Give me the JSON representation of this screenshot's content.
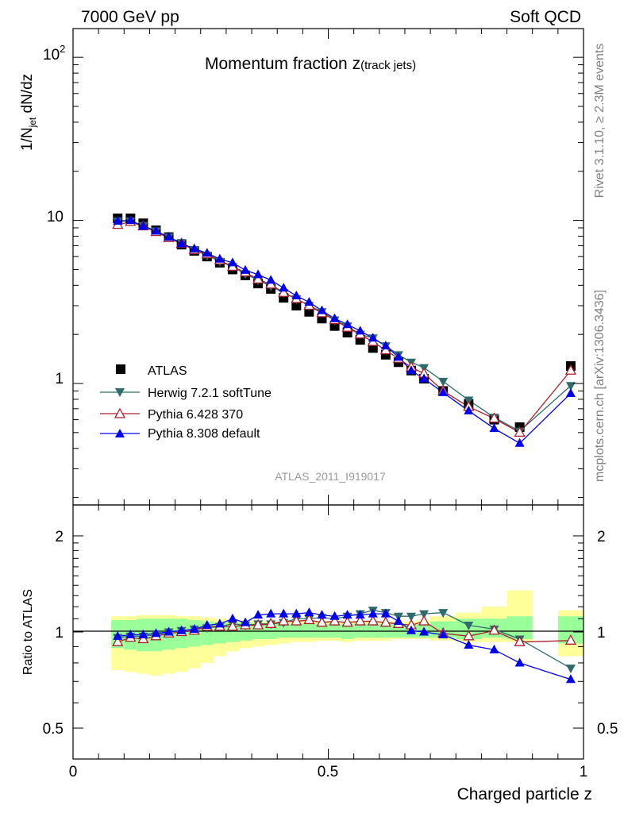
{
  "header": {
    "left": "7000 GeV pp",
    "right": "Soft QCD"
  },
  "side_labels": {
    "rivet": "Rivet 3.1.10, ≥ 2.3M events",
    "mcplots": "mcplots.cern.ch [arXiv:1306.3436]"
  },
  "chart_data": [
    {
      "type": "line",
      "panel": "main",
      "title_main": "Momentum fraction z",
      "title_sub": "(track jets)",
      "ylabel_main": "1/N",
      "ylabel_sub": "jet",
      "ylabel_rest": " dN/dz",
      "xlabel": "Charged particle z",
      "yscale": "log",
      "ylim": [
        0.18,
        150
      ],
      "xlim": [
        0,
        1
      ],
      "ytick_labels": {
        "t10": "10",
        "t1": "1",
        "t100_base": "10",
        "t100_exp": "2"
      },
      "watermark": "ATLAS_2011_I919017",
      "legend": [
        "ATLAS",
        "Herwig 7.2.1 softTune",
        "Pythia 6.428 370",
        "Pythia 8.308 default"
      ],
      "x": [
        0.0875,
        0.1125,
        0.1375,
        0.1625,
        0.1875,
        0.2125,
        0.2375,
        0.2625,
        0.2875,
        0.3125,
        0.3375,
        0.3625,
        0.3875,
        0.4125,
        0.4375,
        0.4625,
        0.4875,
        0.5125,
        0.5375,
        0.5625,
        0.5875,
        0.6125,
        0.6375,
        0.6625,
        0.6875,
        0.725,
        0.775,
        0.825,
        0.875,
        0.975
      ],
      "series": [
        {
          "name": "ATLAS",
          "color": "#000000",
          "marker": "square",
          "values": [
            10.3,
            10.3,
            9.6,
            8.7,
            7.9,
            7.1,
            6.5,
            6.0,
            5.5,
            5.0,
            4.6,
            4.1,
            3.8,
            3.35,
            3.0,
            2.75,
            2.5,
            2.25,
            2.05,
            1.85,
            1.65,
            1.5,
            1.35,
            1.2,
            1.07,
            0.9,
            0.75,
            0.6,
            0.54,
            1.28
          ]
        },
        {
          "name": "Herwig 7.2.1 softTune",
          "color": "#2e6b6b",
          "marker": "triangle-down",
          "values": [
            9.9,
            9.9,
            9.3,
            8.6,
            7.9,
            7.3,
            6.6,
            6.1,
            5.6,
            5.2,
            4.7,
            4.3,
            3.95,
            3.6,
            3.3,
            3.0,
            2.75,
            2.45,
            2.25,
            2.0,
            1.9,
            1.7,
            1.5,
            1.35,
            1.25,
            1.03,
            0.79,
            0.62,
            0.51,
            0.97
          ]
        },
        {
          "name": "Pythia 6.428 370",
          "color": "#aa1f2e",
          "marker": "triangle-up-open",
          "values": [
            9.4,
            9.8,
            9.2,
            8.5,
            7.8,
            7.2,
            6.6,
            6.2,
            5.7,
            5.2,
            4.8,
            4.35,
            4.05,
            3.6,
            3.3,
            3.0,
            2.7,
            2.45,
            2.2,
            2.0,
            1.8,
            1.6,
            1.42,
            1.26,
            1.15,
            0.9,
            0.72,
            0.61,
            0.5,
            1.2
          ]
        },
        {
          "name": "Pythia 8.308 default",
          "color": "#0000ee",
          "marker": "triangle-up",
          "values": [
            9.9,
            10.0,
            9.2,
            8.6,
            7.9,
            7.2,
            6.7,
            6.3,
            5.8,
            5.5,
            4.95,
            4.65,
            4.3,
            3.85,
            3.45,
            3.15,
            2.8,
            2.5,
            2.3,
            2.1,
            1.9,
            1.7,
            1.45,
            1.2,
            1.07,
            0.88,
            0.68,
            0.53,
            0.43,
            0.87
          ]
        }
      ]
    },
    {
      "type": "line",
      "panel": "ratio",
      "ylabel": "Ratio to ATLAS",
      "xlabel": "Charged particle z",
      "yscale": "log",
      "ylim": [
        0.4,
        2.5
      ],
      "xlim": [
        0,
        1
      ],
      "ytick_labels": [
        "0.5",
        "1",
        "2"
      ],
      "xtick_labels": [
        "0",
        "0.5",
        "1"
      ],
      "x": [
        0.0875,
        0.1125,
        0.1375,
        0.1625,
        0.1875,
        0.2125,
        0.2375,
        0.2625,
        0.2875,
        0.3125,
        0.3375,
        0.3625,
        0.3875,
        0.4125,
        0.4375,
        0.4625,
        0.4875,
        0.5125,
        0.5375,
        0.5625,
        0.5875,
        0.6125,
        0.6375,
        0.6625,
        0.6875,
        0.725,
        0.775,
        0.825,
        0.875,
        0.975
      ],
      "bins": [
        [
          0.075,
          0.1
        ],
        [
          0.1,
          0.125
        ],
        [
          0.125,
          0.15
        ],
        [
          0.15,
          0.175
        ],
        [
          0.175,
          0.2
        ],
        [
          0.2,
          0.225
        ],
        [
          0.225,
          0.25
        ],
        [
          0.25,
          0.275
        ],
        [
          0.275,
          0.3
        ],
        [
          0.3,
          0.325
        ],
        [
          0.325,
          0.35
        ],
        [
          0.35,
          0.375
        ],
        [
          0.375,
          0.4
        ],
        [
          0.4,
          0.425
        ],
        [
          0.425,
          0.45
        ],
        [
          0.45,
          0.475
        ],
        [
          0.475,
          0.5
        ],
        [
          0.5,
          0.525
        ],
        [
          0.525,
          0.55
        ],
        [
          0.55,
          0.575
        ],
        [
          0.575,
          0.6
        ],
        [
          0.6,
          0.625
        ],
        [
          0.625,
          0.65
        ],
        [
          0.65,
          0.675
        ],
        [
          0.675,
          0.7
        ],
        [
          0.7,
          0.75
        ],
        [
          0.75,
          0.8
        ],
        [
          0.8,
          0.85
        ],
        [
          0.85,
          0.9
        ],
        [
          0.95,
          1.0
        ]
      ],
      "band_inner": [
        [
          0.89,
          1.09
        ],
        [
          0.88,
          1.09
        ],
        [
          0.87,
          1.1
        ],
        [
          0.87,
          1.1
        ],
        [
          0.88,
          1.1
        ],
        [
          0.89,
          1.1
        ],
        [
          0.9,
          1.09
        ],
        [
          0.91,
          1.08
        ],
        [
          0.92,
          1.07
        ],
        [
          0.93,
          1.07
        ],
        [
          0.94,
          1.07
        ],
        [
          0.95,
          1.06
        ],
        [
          0.95,
          1.06
        ],
        [
          0.96,
          1.06
        ],
        [
          0.96,
          1.06
        ],
        [
          0.96,
          1.06
        ],
        [
          0.96,
          1.06
        ],
        [
          0.96,
          1.06
        ],
        [
          0.95,
          1.06
        ],
        [
          0.96,
          1.06
        ],
        [
          0.96,
          1.06
        ],
        [
          0.96,
          1.06
        ],
        [
          0.96,
          1.06
        ],
        [
          0.96,
          1.06
        ],
        [
          0.96,
          1.06
        ],
        [
          0.96,
          1.08
        ],
        [
          0.95,
          1.1
        ],
        [
          0.96,
          1.1
        ],
        [
          0.95,
          1.12
        ],
        [
          0.92,
          1.12
        ]
      ],
      "band_outer": [
        [
          0.76,
          1.12
        ],
        [
          0.75,
          1.12
        ],
        [
          0.74,
          1.13
        ],
        [
          0.73,
          1.13
        ],
        [
          0.74,
          1.13
        ],
        [
          0.75,
          1.12
        ],
        [
          0.77,
          1.12
        ],
        [
          0.8,
          1.11
        ],
        [
          0.84,
          1.1
        ],
        [
          0.87,
          1.09
        ],
        [
          0.89,
          1.09
        ],
        [
          0.9,
          1.08
        ],
        [
          0.91,
          1.08
        ],
        [
          0.92,
          1.08
        ],
        [
          0.93,
          1.08
        ],
        [
          0.93,
          1.08
        ],
        [
          0.94,
          1.08
        ],
        [
          0.94,
          1.08
        ],
        [
          0.93,
          1.08
        ],
        [
          0.94,
          1.08
        ],
        [
          0.94,
          1.08
        ],
        [
          0.94,
          1.08
        ],
        [
          0.95,
          1.08
        ],
        [
          0.95,
          1.08
        ],
        [
          0.95,
          1.09
        ],
        [
          0.94,
          1.12
        ],
        [
          0.93,
          1.15
        ],
        [
          0.93,
          1.2
        ],
        [
          0.93,
          1.35
        ],
        [
          0.84,
          1.17
        ]
      ],
      "series": [
        {
          "name": "Herwig 7.2.1 softTune",
          "color": "#2e6b6b",
          "marker": "triangle-down",
          "values": [
            0.96,
            0.97,
            0.97,
            0.98,
            1.0,
            1.01,
            1.02,
            1.03,
            1.04,
            1.06,
            1.05,
            1.06,
            1.06,
            1.07,
            1.1,
            1.1,
            1.11,
            1.1,
            1.12,
            1.14,
            1.17,
            1.15,
            1.12,
            1.12,
            1.14,
            1.15,
            1.05,
            1.02,
            0.95,
            0.77
          ]
        },
        {
          "name": "Pythia 6.428 370",
          "color": "#aa1f2e",
          "marker": "triangle-up-open",
          "values": [
            0.93,
            0.96,
            0.95,
            0.97,
            0.99,
            1.0,
            1.01,
            1.04,
            1.04,
            1.04,
            1.05,
            1.05,
            1.06,
            1.08,
            1.08,
            1.09,
            1.07,
            1.08,
            1.07,
            1.08,
            1.08,
            1.07,
            1.06,
            1.05,
            1.08,
            0.99,
            0.97,
            1.01,
            0.93,
            0.94
          ]
        },
        {
          "name": "Pythia 8.308 default",
          "color": "#0000ee",
          "marker": "triangle-up",
          "values": [
            0.97,
            0.98,
            0.98,
            0.99,
            1.0,
            1.01,
            1.02,
            1.05,
            1.06,
            1.1,
            1.07,
            1.13,
            1.14,
            1.14,
            1.14,
            1.15,
            1.13,
            1.12,
            1.13,
            1.13,
            1.14,
            1.14,
            1.08,
            1.01,
            1.0,
            0.98,
            0.91,
            0.88,
            0.8,
            0.71
          ]
        }
      ]
    }
  ]
}
